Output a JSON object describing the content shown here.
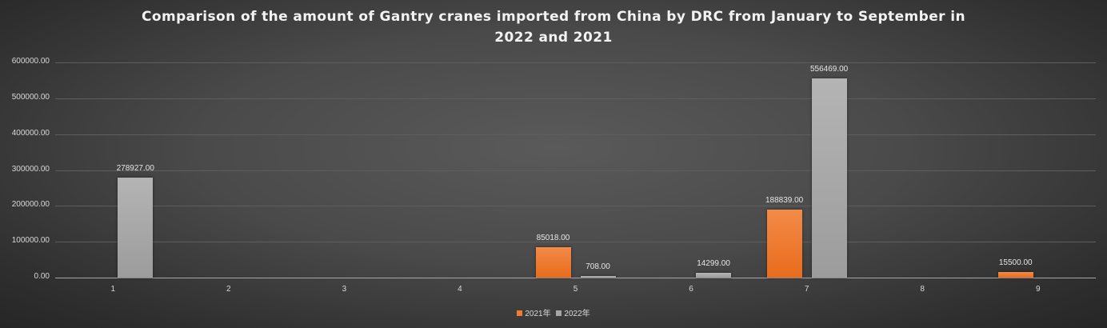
{
  "chart_data": {
    "type": "bar",
    "title": "Comparison of the amount of Gantry cranes imported from China by DRC from January to September in 2022 and 2021",
    "title_lines": [
      "Comparison of the amount of Gantry cranes imported from China by DRC from January to September in",
      "2022 and 2021"
    ],
    "xlabel": "",
    "ylabel": "",
    "categories": [
      "1",
      "2",
      "3",
      "4",
      "5",
      "6",
      "7",
      "8",
      "9"
    ],
    "series": [
      {
        "name": "2021年",
        "color": "#ed7d31",
        "values": [
          null,
          null,
          null,
          null,
          85018.0,
          null,
          188839.0,
          null,
          15500.0
        ]
      },
      {
        "name": "2022年",
        "color": "#a5a5a5",
        "values": [
          278927.0,
          null,
          null,
          null,
          708.0,
          14299.0,
          556469.0,
          null,
          null
        ]
      }
    ],
    "ylim": [
      0,
      600000
    ],
    "yticks": [
      "0.00",
      "100000.00",
      "200000.00",
      "300000.00",
      "400000.00",
      "500000.00",
      "600000.00"
    ],
    "grid": true,
    "legend_position": "bottom",
    "data_labels": true
  }
}
